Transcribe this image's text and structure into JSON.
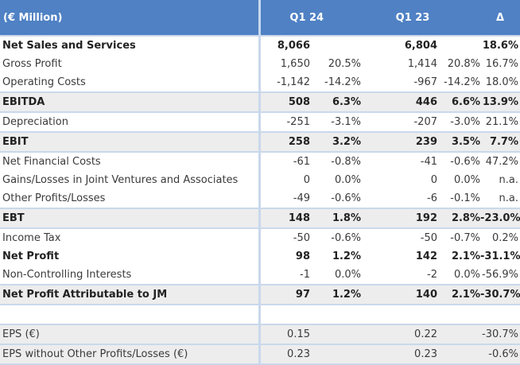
{
  "header": {
    "label": "(€ Million)",
    "col1": "Q1 24",
    "col2": "Q1 23",
    "col3": "Δ"
  },
  "rows": [
    {
      "label": "Net Sales and Services",
      "v1": "8,066",
      "p1": "",
      "v2": "6,804",
      "p2": "",
      "d": "18.6%",
      "bold": true,
      "shade": false
    },
    {
      "label": "Gross Profit",
      "v1": "1,650",
      "p1": "20.5%",
      "v2": "1,414",
      "p2": "20.8%",
      "d": "16.7%",
      "bold": false,
      "shade": false
    },
    {
      "label": "Operating Costs",
      "v1": "-1,142",
      "p1": "-14.2%",
      "v2": "-967",
      "p2": "-14.2%",
      "d": "18.0%",
      "bold": false,
      "shade": false
    },
    {
      "label": "EBITDA",
      "v1": "508",
      "p1": "6.3%",
      "v2": "446",
      "p2": "6.6%",
      "d": "13.9%",
      "bold": true,
      "shade": true
    },
    {
      "label": "Depreciation",
      "v1": "-251",
      "p1": "-3.1%",
      "v2": "-207",
      "p2": "-3.0%",
      "d": "21.1%",
      "bold": false,
      "shade": false
    },
    {
      "label": "EBIT",
      "v1": "258",
      "p1": "3.2%",
      "v2": "239",
      "p2": "3.5%",
      "d": "7.7%",
      "bold": true,
      "shade": true
    },
    {
      "label": "Net Financial Costs",
      "v1": "-61",
      "p1": "-0.8%",
      "v2": "-41",
      "p2": "-0.6%",
      "d": "47.2%",
      "bold": false,
      "shade": false
    },
    {
      "label": "Gains/Losses in Joint Ventures and Associates",
      "v1": "0",
      "p1": "0.0%",
      "v2": "0",
      "p2": "0.0%",
      "d": "n.a.",
      "bold": false,
      "shade": false
    },
    {
      "label": "Other Profits/Losses",
      "v1": "-49",
      "p1": "-0.6%",
      "v2": "-6",
      "p2": "-0.1%",
      "d": "n.a.",
      "bold": false,
      "shade": false
    },
    {
      "label": "EBT",
      "v1": "148",
      "p1": "1.8%",
      "v2": "192",
      "p2": "2.8%",
      "d": "-23.0%",
      "bold": true,
      "shade": true
    },
    {
      "label": "Income Tax",
      "v1": "-50",
      "p1": "-0.6%",
      "v2": "-50",
      "p2": "-0.7%",
      "d": "0.2%",
      "bold": false,
      "shade": false
    },
    {
      "label": "Net Profit",
      "v1": "98",
      "p1": "1.2%",
      "v2": "142",
      "p2": "2.1%",
      "d": "-31.1%",
      "bold": true,
      "shade": false
    },
    {
      "label": "Non-Controlling Interests",
      "v1": "-1",
      "p1": "0.0%",
      "v2": "-2",
      "p2": "0.0%",
      "d": "-56.9%",
      "bold": false,
      "shade": false
    },
    {
      "label": "Net Profit Attributable to JM",
      "v1": "97",
      "p1": "1.2%",
      "v2": "140",
      "p2": "2.1%",
      "d": "-30.7%",
      "bold": true,
      "shade": true
    },
    {
      "label": "",
      "v1": "",
      "p1": "",
      "v2": "",
      "p2": "",
      "d": "",
      "bold": false,
      "shade": false,
      "blank": true
    },
    {
      "label": "EPS (€)",
      "v1": "0.15",
      "p1": "",
      "v2": "0.22",
      "p2": "",
      "d": "-30.7%",
      "bold": false,
      "shade": true
    },
    {
      "label": "EPS without Other Profits/Losses (€)",
      "v1": "0.23",
      "p1": "",
      "v2": "0.23",
      "p2": "",
      "d": "-0.6%",
      "bold": false,
      "shade": true
    }
  ]
}
